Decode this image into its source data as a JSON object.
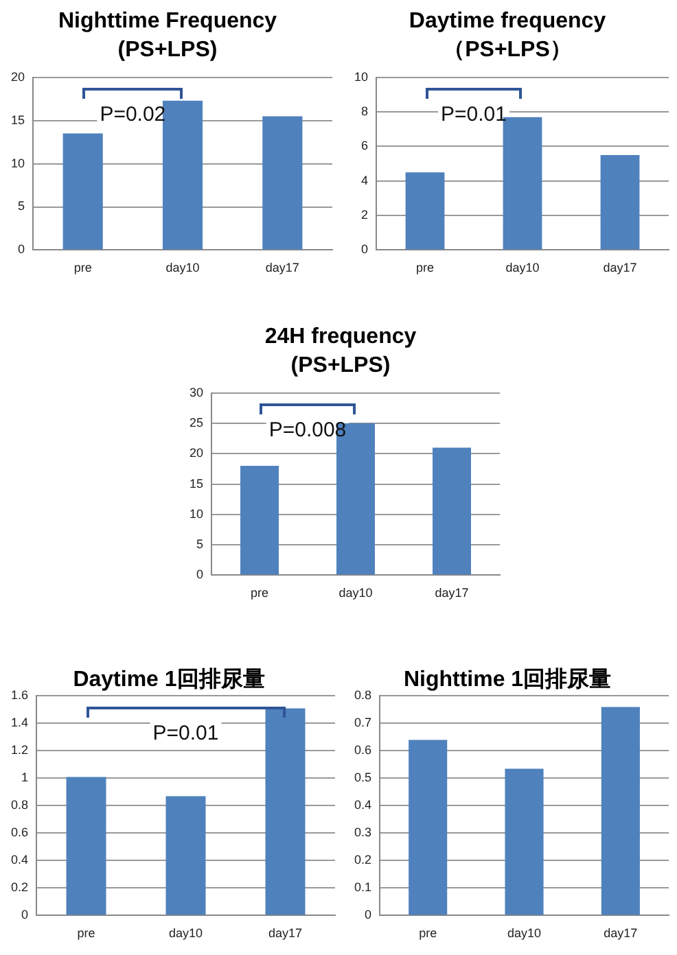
{
  "chart_data": [
    {
      "type": "bar",
      "title": "Nighttime Frequency",
      "subtitle": "(PS+LPS)",
      "categories": [
        "pre",
        "day10",
        "day17"
      ],
      "values": [
        13.5,
        17.3,
        15.5
      ],
      "color": "#4f81bd",
      "ylim": [
        0,
        20
      ],
      "yticks": [
        0,
        5,
        10,
        15,
        20
      ],
      "grid": "y",
      "annotations": [
        "P=0.02"
      ]
    },
    {
      "type": "bar",
      "title": "Daytime frequency",
      "subtitle": "（PS+LPS）",
      "categories": [
        "pre",
        "day10",
        "day17"
      ],
      "values": [
        4.5,
        7.7,
        5.5
      ],
      "color": "#4f81bd",
      "ylim": [
        0,
        10
      ],
      "yticks": [
        0,
        2,
        4,
        6,
        8,
        10
      ],
      "grid": "y",
      "annotations": [
        "P=0.01"
      ]
    },
    {
      "type": "bar",
      "title": "24H frequency",
      "subtitle": "(PS+LPS)",
      "categories": [
        "pre",
        "day10",
        "day17"
      ],
      "values": [
        18,
        25,
        21
      ],
      "color": "#4f81bd",
      "ylim": [
        0,
        30
      ],
      "yticks": [
        0,
        5,
        10,
        15,
        20,
        25,
        30
      ],
      "grid": "y",
      "annotations": [
        "P=0.008"
      ]
    },
    {
      "type": "bar",
      "title": "Daytime 1回排尿量",
      "categories": [
        "pre",
        "day10",
        "day17"
      ],
      "values": [
        1.01,
        0.87,
        1.51
      ],
      "color": "#4f81bd",
      "ylim": [
        0,
        1.6
      ],
      "yticks": [
        0,
        0.2,
        0.4,
        0.6,
        0.8,
        1,
        1.2,
        1.4,
        1.6
      ],
      "grid": "y",
      "annotations": [
        "P=0.01"
      ]
    },
    {
      "type": "bar",
      "title": "Nighttime 1回排尿量",
      "categories": [
        "pre",
        "day10",
        "day17"
      ],
      "values": [
        0.64,
        0.535,
        0.76
      ],
      "color": "#4f81bd",
      "ylim": [
        0,
        0.8
      ],
      "yticks": [
        0,
        0.1,
        0.2,
        0.3,
        0.4,
        0.5,
        0.6,
        0.7,
        0.8
      ],
      "grid": "y"
    }
  ]
}
